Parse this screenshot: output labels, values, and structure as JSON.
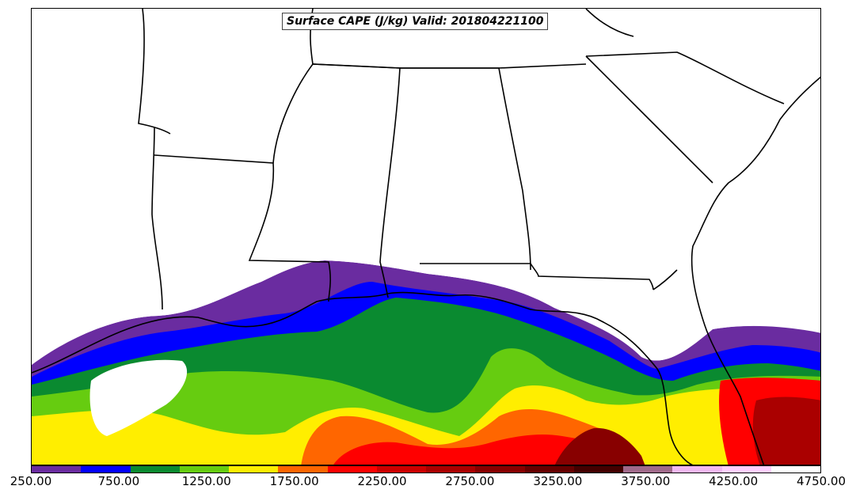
{
  "title": "Surface CAPE (J/kg) Valid: 201804221100",
  "colorbar": {
    "min": 250,
    "max": 4750,
    "colors": [
      "#6a2ca0",
      "#0000ff",
      "#0a8a30",
      "#66cc10",
      "#ffee00",
      "#ff6600",
      "#ff0000",
      "#cc0000",
      "#aa0000",
      "#880000",
      "#660000",
      "#440000",
      "#a06a8a",
      "#f2b8f2",
      "#ffd0ff",
      "#ffffff"
    ],
    "tick_values": [
      250,
      750,
      1250,
      1750,
      2250,
      2750,
      3250,
      3750,
      4250,
      4750
    ],
    "tick_labels": [
      "250.00",
      "750.00",
      "1250.00",
      "1750.00",
      "2250.00",
      "2750.00",
      "3250.00",
      "3750.00",
      "4250.00",
      "4750.00"
    ]
  }
}
